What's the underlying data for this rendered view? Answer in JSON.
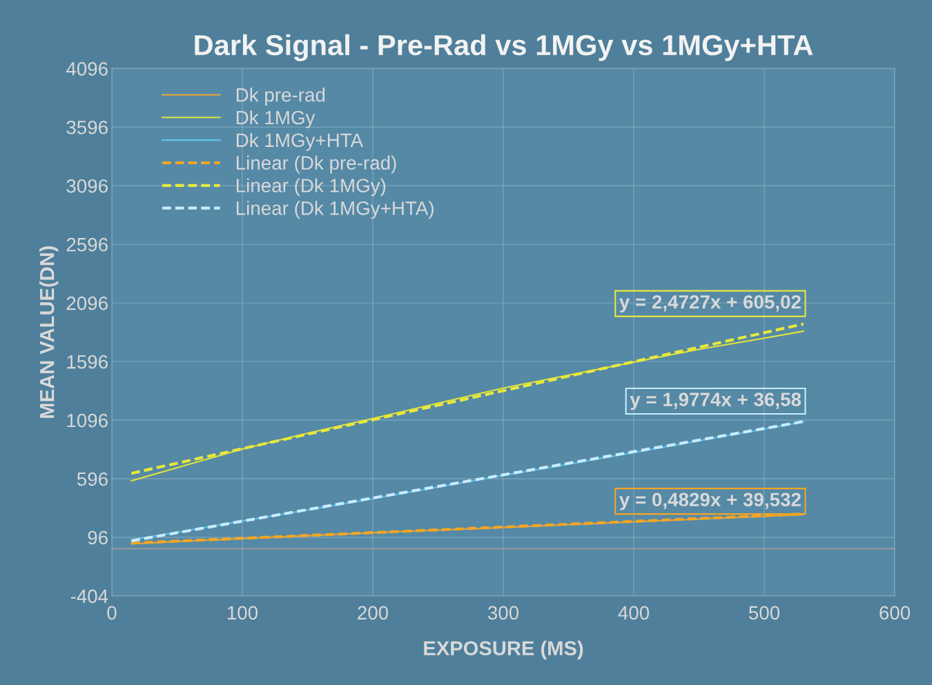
{
  "chart_data": {
    "type": "line",
    "title": "Dark Signal - Pre-Rad vs 1MGy vs 1MGy+HTA",
    "xlabel": "EXPOSURE (MS)",
    "ylabel": "MEAN VALUE(DN)",
    "xlim": [
      0,
      600
    ],
    "xticks": [
      0,
      100,
      200,
      300,
      400,
      500,
      600
    ],
    "ylim": [
      -404,
      4096
    ],
    "yticks": [
      -404,
      96,
      596,
      1096,
      1596,
      2096,
      2596,
      3096,
      3596,
      4096
    ],
    "grid": true,
    "legend": "top left",
    "marker": "none",
    "series": [
      {
        "name": "Dk pre-rad",
        "color": "#f0a830",
        "line_style": "solid",
        "x": [
          15,
          50,
          100,
          150,
          200,
          250,
          300,
          350,
          400,
          450,
          500,
          530
        ],
        "values": [
          40,
          60,
          85,
          110,
          135,
          158,
          180,
          205,
          228,
          252,
          275,
          290
        ]
      },
      {
        "name": "Dk 1MGy",
        "color": "#e2e43a",
        "line_style": "solid",
        "x": [
          15,
          50,
          100,
          150,
          200,
          250,
          300,
          350,
          400,
          450,
          500,
          530
        ],
        "values": [
          579,
          690,
          849,
          985,
          1110,
          1240,
          1370,
          1480,
          1590,
          1700,
          1795,
          1855
        ]
      },
      {
        "name": "Dk 1MGy+HTA",
        "color": "#5cc4f0",
        "line_style": "solid",
        "x": [
          15,
          50,
          100,
          150,
          200,
          250,
          300,
          350,
          400,
          450,
          500,
          530
        ],
        "values": [
          75,
          140,
          235,
          330,
          425,
          525,
          625,
          720,
          820,
          920,
          1020,
          1080
        ]
      },
      {
        "name": "Linear (Dk pre-rad)",
        "color": "#f5a623",
        "line_style": "dashed",
        "x": [
          15,
          530
        ],
        "values": [
          47,
          295
        ]
      },
      {
        "name": "Linear (Dk 1MGy)",
        "color": "#e8e83c",
        "line_style": "dashed",
        "x": [
          15,
          530
        ],
        "values": [
          642,
          1916
        ]
      },
      {
        "name": "Linear (Dk 1MGy+HTA)",
        "color": "#c8ecff",
        "line_style": "dashed",
        "x": [
          15,
          530
        ],
        "values": [
          66,
          1084
        ]
      }
    ],
    "annotations": [
      "y = 0,4829x + 39,532",
      "y = 2,4727x + 605,02",
      "y = 1,9774x + 36,58"
    ]
  }
}
